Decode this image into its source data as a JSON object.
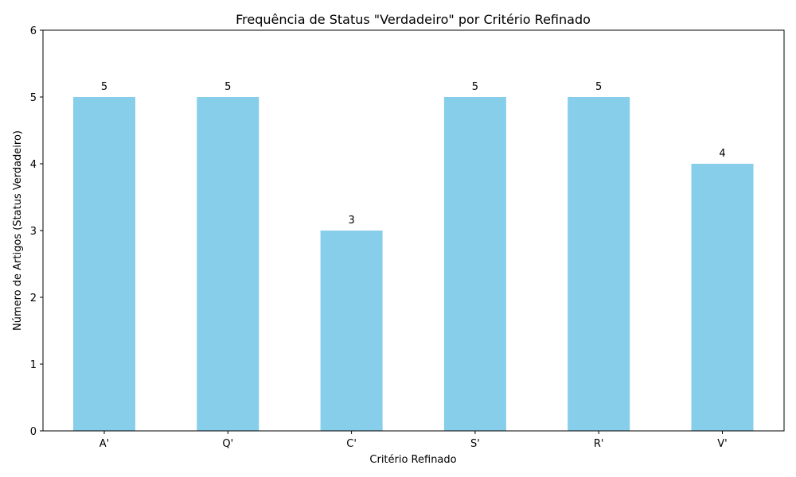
{
  "chart_data": {
    "type": "bar",
    "title": "Frequência de Status \"Verdadeiro\" por Critério Refinado",
    "xlabel": "Critério Refinado",
    "ylabel": "Número de Artigos (Status Verdadeiro)",
    "categories": [
      "A'",
      "Q'",
      "C'",
      "S'",
      "R'",
      "V'"
    ],
    "values": [
      5,
      5,
      3,
      5,
      5,
      4
    ],
    "ylim": [
      0,
      6
    ],
    "yticks": [
      0,
      1,
      2,
      3,
      4,
      5,
      6
    ],
    "bar_color": "#87CEEB",
    "grid": false,
    "legend": "none"
  }
}
